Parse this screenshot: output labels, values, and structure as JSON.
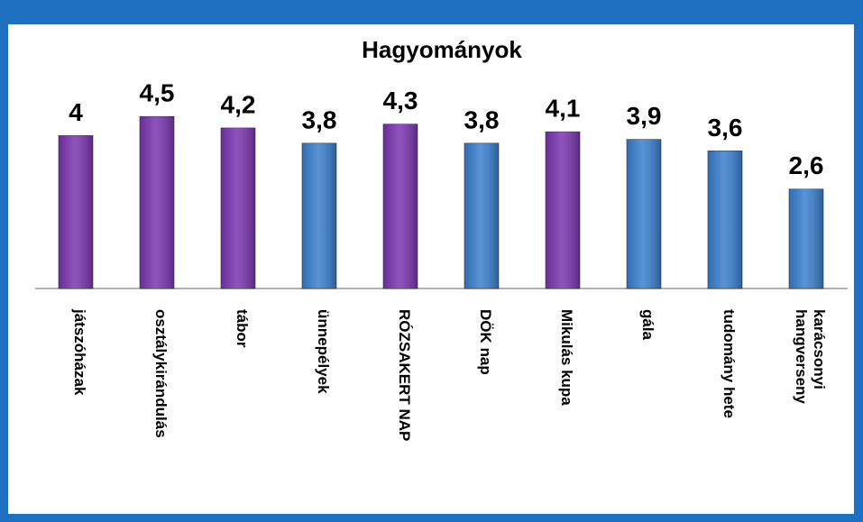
{
  "chart_data": {
    "type": "bar",
    "title": "Hagyományok",
    "categories": [
      "játszóházak",
      "osztálykirándulás",
      "tábor",
      "ünnepélyek",
      "RÓZSAKERT NAP",
      "DÖK nap",
      "Mikulás kupa",
      "gála",
      "tudomány hete",
      "karácsonyi\nhangverseny"
    ],
    "values": [
      4,
      4.5,
      4.2,
      3.8,
      4.3,
      3.8,
      4.1,
      3.9,
      3.6,
      2.6
    ],
    "value_labels": [
      "4",
      "4,5",
      "4,2",
      "3,8",
      "4,3",
      "3,8",
      "4,1",
      "3,9",
      "3,6",
      "2,6"
    ],
    "colors": [
      "#7a35b0",
      "#7a35b0",
      "#7a35b0",
      "#3a7fd0",
      "#7a35b0",
      "#3a7fd0",
      "#7a35b0",
      "#3a7fd0",
      "#3a7fd0",
      "#3a7fd0"
    ],
    "ylim": [
      0,
      5
    ]
  }
}
